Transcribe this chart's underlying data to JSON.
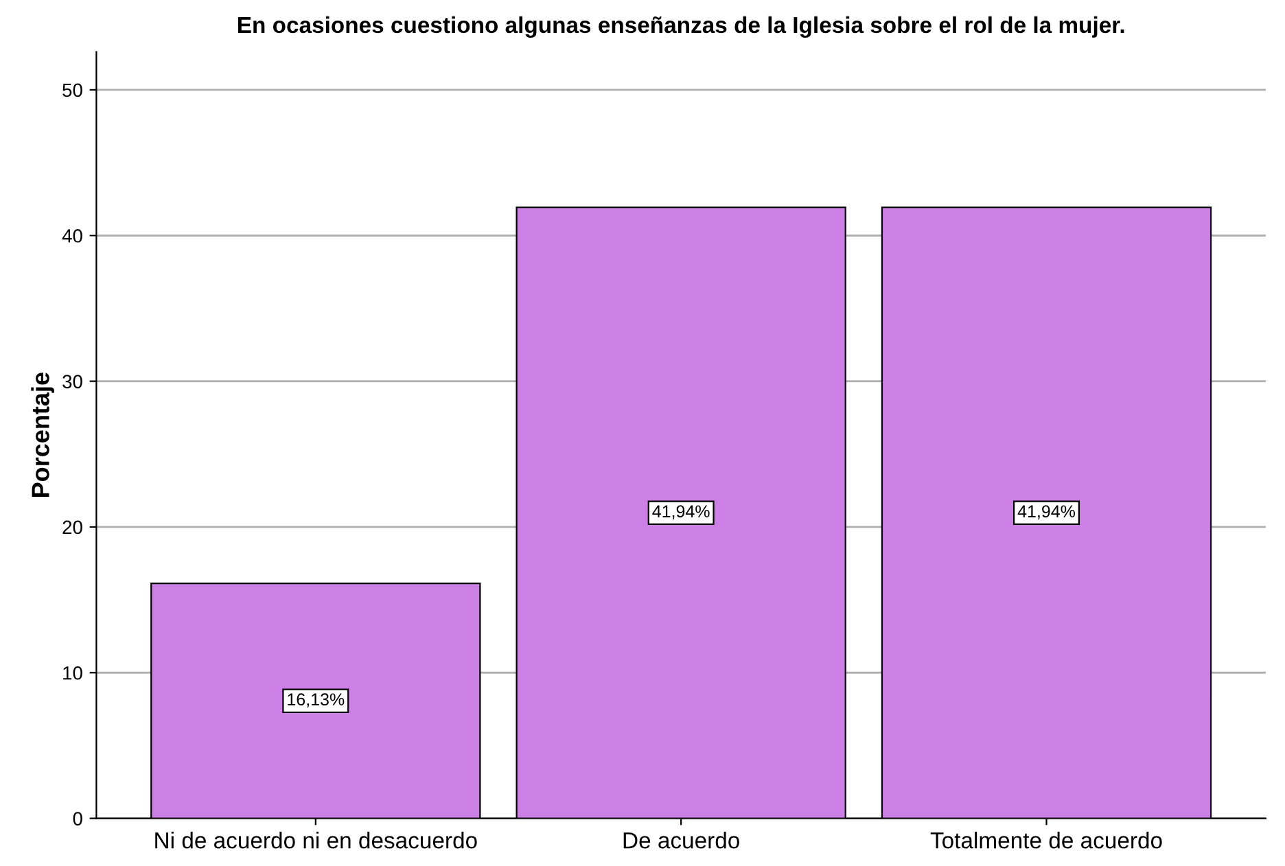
{
  "chart_data": {
    "type": "bar",
    "title": "En ocasiones cuestiono algunas enseñanzas de la Iglesia sobre el rol de la mujer.",
    "ylabel": "Porcentaje",
    "categories": [
      "Ni de acuerdo ni en desacuerdo",
      "De acuerdo",
      "Totalmente de acuerdo"
    ],
    "values": [
      16.13,
      41.94,
      41.94
    ],
    "value_labels": [
      "16,13%",
      "41,94%",
      "41,94%"
    ],
    "color": "#cc80e6",
    "ylim": [
      0,
      52.6
    ],
    "yticks": [
      0,
      10,
      20,
      30,
      40,
      50
    ],
    "grid": "y"
  }
}
